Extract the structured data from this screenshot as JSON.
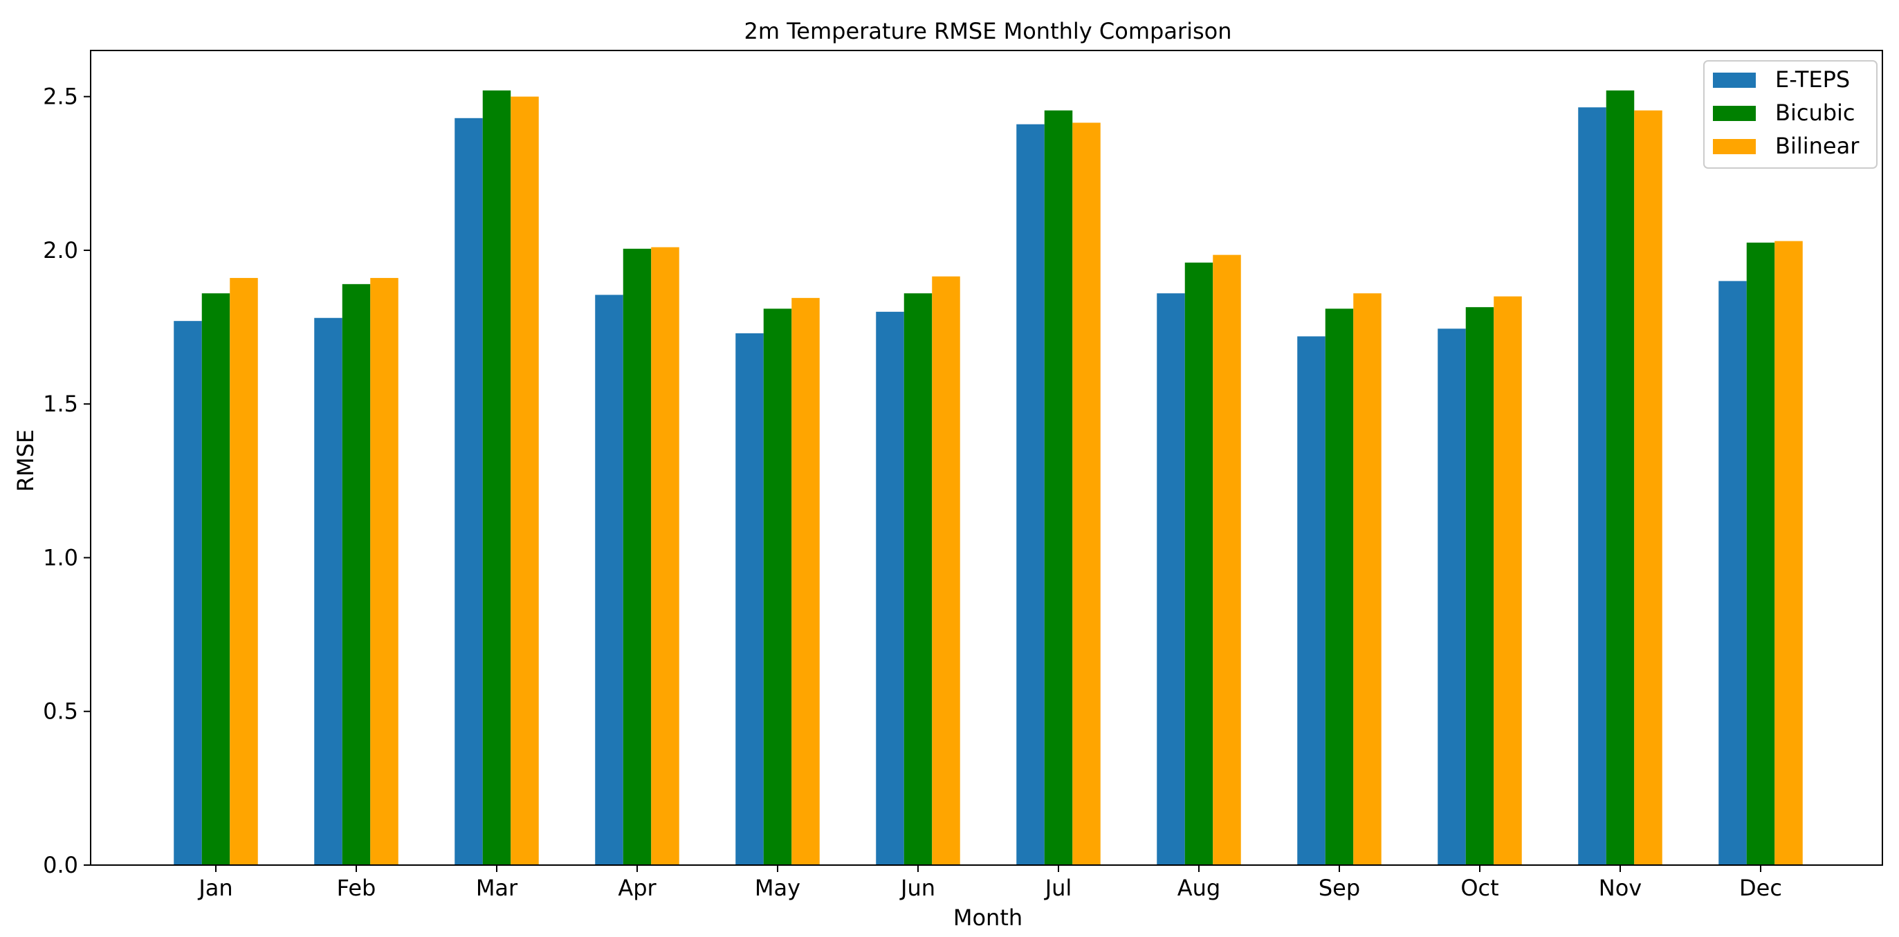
{
  "chart_data": {
    "type": "bar",
    "title": "2m Temperature RMSE Monthly Comparison",
    "xlabel": "Month",
    "ylabel": "RMSE",
    "ylim": [
      0,
      2.65
    ],
    "yticks": [
      "0.0",
      "0.5",
      "1.0",
      "1.5",
      "2.0",
      "2.5"
    ],
    "grid": false,
    "legend_position": "top-right",
    "categories": [
      "Jan",
      "Feb",
      "Mar",
      "Apr",
      "May",
      "Jun",
      "Jul",
      "Aug",
      "Sep",
      "Oct",
      "Nov",
      "Dec"
    ],
    "series": [
      {
        "name": "E-TEPS",
        "color": "#1f77b4",
        "values": [
          1.77,
          1.78,
          2.43,
          1.855,
          1.73,
          1.8,
          2.41,
          1.86,
          1.72,
          1.745,
          2.465,
          1.9
        ]
      },
      {
        "name": "Bicubic",
        "color": "#008000",
        "values": [
          1.86,
          1.89,
          2.52,
          2.005,
          1.81,
          1.86,
          2.455,
          1.96,
          1.81,
          1.815,
          2.52,
          2.025
        ]
      },
      {
        "name": "Bilinear",
        "color": "#ffa500",
        "values": [
          1.91,
          1.91,
          2.5,
          2.01,
          1.845,
          1.915,
          2.415,
          1.985,
          1.86,
          1.85,
          2.455,
          2.03
        ]
      }
    ]
  }
}
